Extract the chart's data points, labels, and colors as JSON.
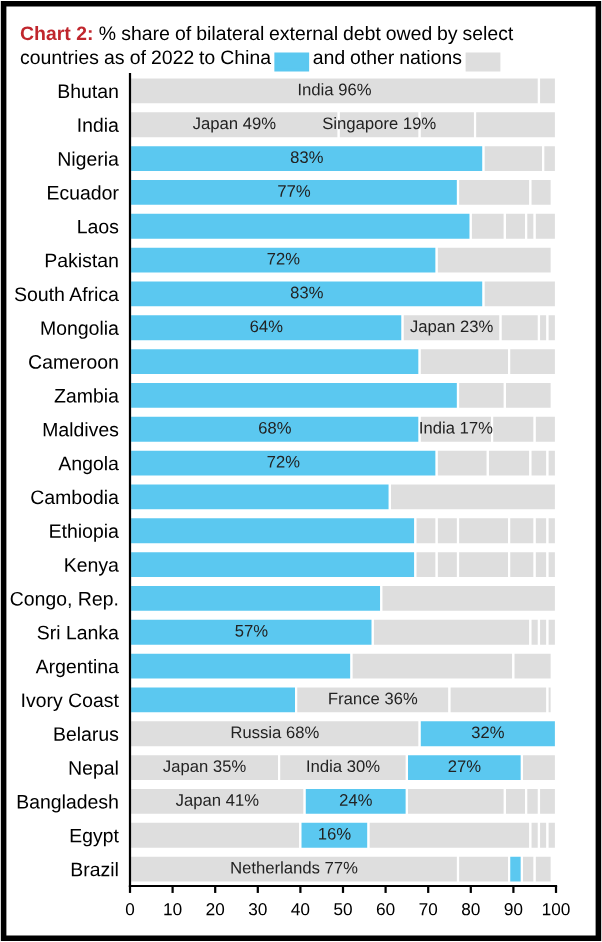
{
  "chart_data": {
    "type": "bar",
    "orientation": "horizontal",
    "stacked": true,
    "title": "Chart 2:",
    "subtitle": "% share of bilateral external debt owed by select countries as of  2022 to China",
    "annotations": [
      "and other nations"
    ],
    "categories": [
      "Bhutan",
      "India",
      "Nigeria",
      "Ecuador",
      "Laos",
      "Pakistan",
      "South Africa",
      "Mongolia",
      "Cameroon",
      "Zambia",
      "Maldives",
      "Angola",
      "Cambodia",
      "Ethiopia",
      "Kenya",
      "Congo, Rep.",
      "Sri Lanka",
      "Argentina",
      "Ivory Coast",
      "Belarus",
      "Nepal",
      "Bangladesh",
      "Egypt",
      "Brazil"
    ],
    "xlim": [
      0,
      100
    ],
    "xticks": [
      0,
      10,
      20,
      30,
      40,
      50,
      60,
      70,
      80,
      90,
      100
    ],
    "grid": false,
    "legend": false,
    "series": [
      {
        "values": [
          96,
          49,
          83,
          77,
          80,
          72,
          83,
          64,
          68,
          77,
          68,
          72,
          61,
          67,
          67,
          59,
          57,
          52,
          39,
          68,
          35,
          41,
          40,
          77
        ],
        "colors": [
          "#dedede",
          "#dedede",
          "#5bc8f0",
          "#5bc8f0",
          "#5bc8f0",
          "#5bc8f0",
          "#5bc8f0",
          "#5bc8f0",
          "#5bc8f0",
          "#5bc8f0",
          "#5bc8f0",
          "#5bc8f0",
          "#5bc8f0",
          "#5bc8f0",
          "#5bc8f0",
          "#5bc8f0",
          "#5bc8f0",
          "#5bc8f0",
          "#5bc8f0",
          "#dedede",
          "#dedede",
          "#dedede",
          "#dedede",
          "#dedede"
        ],
        "value_labels": [
          "India 96%",
          "Japan 49%",
          "83%",
          "77%",
          null,
          "72%",
          "83%",
          "64%",
          null,
          null,
          "68%",
          "72%",
          null,
          null,
          null,
          null,
          "57%",
          null,
          null,
          "Russia 68%",
          "Japan 35%",
          "Japan 41%",
          null,
          "Netherlands 77%"
        ]
      },
      {
        "values": [
          4,
          19,
          14,
          17,
          8,
          27,
          17,
          23,
          21,
          11,
          17,
          12,
          39,
          5,
          5,
          41,
          37,
          38,
          36,
          32,
          30,
          24,
          16,
          12
        ],
        "colors": [
          "#dedede",
          "#dedede",
          "#dedede",
          "#dedede",
          "#dedede",
          "#dedede",
          "#dedede",
          "#dedede",
          "#dedede",
          "#dedede",
          "#dedede",
          "#dedede",
          "#dedede",
          "#dedede",
          "#dedede",
          "#dedede",
          "#dedede",
          "#dedede",
          "#dedede",
          "#5bc8f0",
          "#dedede",
          "#5bc8f0",
          "#5bc8f0",
          "#dedede"
        ],
        "value_labels": [
          null,
          "Singapore 19%",
          null,
          null,
          null,
          null,
          null,
          "Japan 23%",
          null,
          null,
          "India 17%",
          null,
          null,
          null,
          null,
          null,
          null,
          null,
          "France 36%",
          "32%",
          "India 30%",
          "24%",
          "16%",
          null
        ]
      },
      {
        "values": [
          null,
          13,
          3,
          5,
          5,
          null,
          null,
          9,
          11,
          11,
          10,
          10,
          null,
          5,
          5,
          null,
          2,
          9,
          23,
          null,
          27,
          23,
          38,
          3
        ],
        "colors": [
          "#dedede",
          "#dedede",
          "#dedede",
          "#dedede",
          "#dedede",
          "#dedede",
          "#dedede",
          "#dedede",
          "#dedede",
          "#dedede",
          "#dedede",
          "#dedede",
          "#dedede",
          "#dedede",
          "#dedede",
          "#dedede",
          "#dedede",
          "#dedede",
          "#dedede",
          "#dedede",
          "#5bc8f0",
          "#dedede",
          "#dedede",
          "#5bc8f0"
        ],
        "value_labels": [
          null,
          null,
          null,
          null,
          null,
          null,
          null,
          null,
          null,
          null,
          null,
          null,
          null,
          null,
          null,
          null,
          null,
          null,
          null,
          null,
          "27%",
          null,
          null,
          null
        ]
      },
      {
        "values": [
          null,
          19,
          null,
          null,
          2,
          null,
          null,
          2,
          null,
          null,
          5,
          4,
          null,
          12,
          12,
          null,
          2,
          null,
          1,
          null,
          8,
          5,
          2,
          3
        ],
        "colors": [
          "#dedede",
          "#dedede",
          "#dedede",
          "#dedede",
          "#dedede",
          "#dedede",
          "#dedede",
          "#dedede",
          "#dedede",
          "#dedede",
          "#dedede",
          "#dedede",
          "#dedede",
          "#dedede",
          "#dedede",
          "#dedede",
          "#dedede",
          "#dedede",
          "#dedede",
          "#dedede",
          "#dedede",
          "#dedede",
          "#dedede",
          "#dedede"
        ]
      },
      {
        "values": [
          null,
          null,
          null,
          null,
          5,
          null,
          null,
          2,
          null,
          null,
          null,
          2,
          null,
          6,
          6,
          null,
          2,
          null,
          null,
          null,
          null,
          3,
          2,
          4
        ],
        "colors": [
          "#dedede",
          "#dedede",
          "#dedede",
          "#dedede",
          "#dedede",
          "#dedede",
          "#dedede",
          "#dedede",
          "#dedede",
          "#dedede",
          "#dedede",
          "#dedede",
          "#dedede",
          "#dedede",
          "#dedede",
          "#dedede",
          "#dedede",
          "#dedede",
          "#dedede",
          "#dedede",
          "#dedede",
          "#dedede",
          "#dedede",
          "#dedede"
        ]
      },
      {
        "values": [
          null,
          null,
          null,
          null,
          null,
          null,
          null,
          null,
          null,
          null,
          null,
          null,
          null,
          3,
          3,
          null,
          null,
          null,
          null,
          null,
          null,
          4,
          2,
          null
        ],
        "colors": [
          "#dedede",
          "#dedede",
          "#dedede",
          "#dedede",
          "#dedede",
          "#dedede",
          "#dedede",
          "#dedede",
          "#dedede",
          "#dedede",
          "#dedede",
          "#dedede",
          "#dedede",
          "#dedede",
          "#dedede",
          "#dedede",
          "#dedede",
          "#dedede",
          "#dedede",
          "#dedede",
          "#dedede",
          "#dedede",
          "#dedede",
          "#dedede"
        ]
      },
      {
        "values": [
          null,
          null,
          null,
          null,
          null,
          null,
          null,
          null,
          null,
          null,
          null,
          null,
          null,
          2,
          2,
          null,
          null,
          null,
          null,
          null,
          null,
          null,
          null,
          null
        ],
        "colors": [
          "#dedede",
          "#dedede",
          "#dedede",
          "#dedede",
          "#dedede",
          "#dedede",
          "#dedede",
          "#dedede",
          "#dedede",
          "#dedede",
          "#dedede",
          "#dedede",
          "#dedede",
          "#dedede",
          "#dedede",
          "#dedede",
          "#dedede",
          "#dedede",
          "#dedede",
          "#dedede",
          "#dedede",
          "#dedede",
          "#dedede",
          "#dedede"
        ]
      }
    ]
  }
}
